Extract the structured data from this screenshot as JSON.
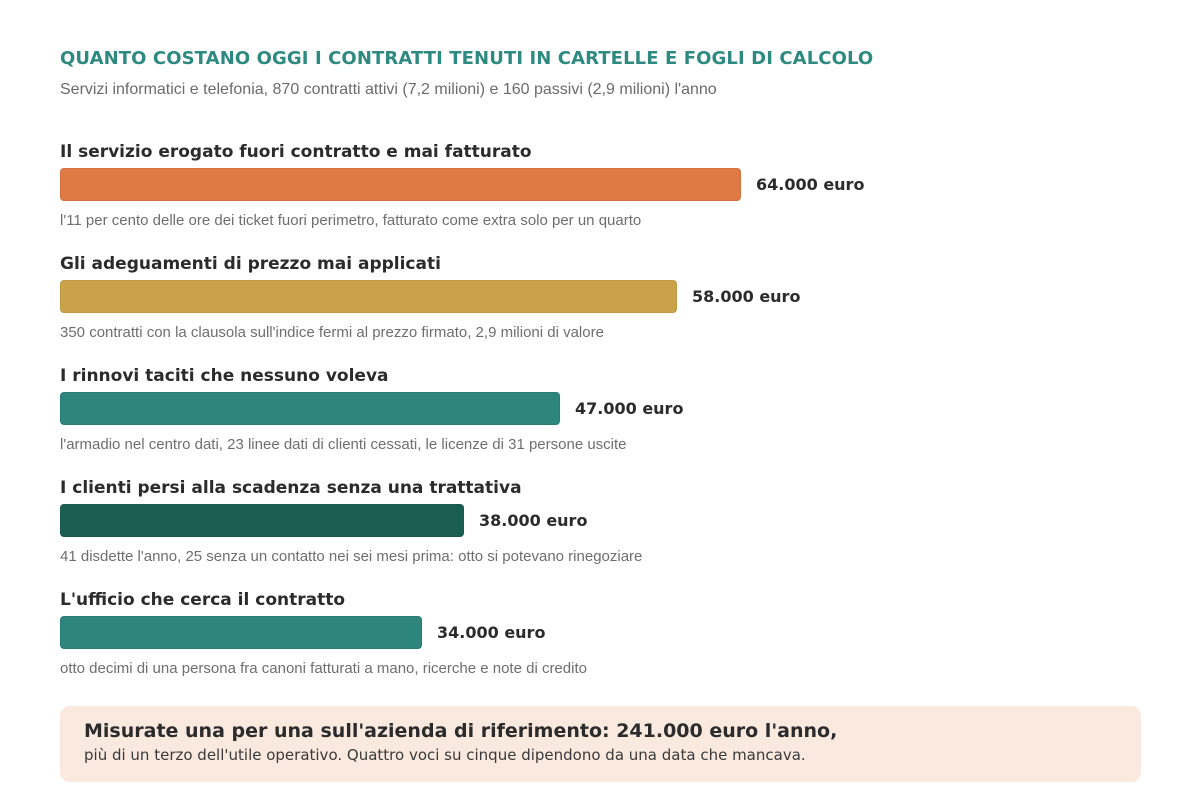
{
  "title": "QUANTO COSTANO OGGI I CONTRATTI TENUTI IN CARTELLE E FOGLI DI CALCOLO",
  "subtitle": "Servizi informatici e telefonia, 870 contratti attivi (7,2 milioni) e 160 passivi (2,9 milioni) l'anno",
  "chart_data": {
    "type": "bar",
    "orientation": "horizontal",
    "unit": "euro",
    "categories": [
      "Il servizio erogato fuori contratto e mai fatturato",
      "Gli adeguamenti di prezzo mai applicati",
      "I rinnovi taciti che nessuno voleva",
      "I clienti persi alla scadenza senza una trattativa",
      "L'ufficio che cerca il contratto"
    ],
    "values": [
      64000,
      58000,
      47000,
      38000,
      34000
    ],
    "value_labels": [
      "64.000 euro",
      "58.000 euro",
      "47.000 euro",
      "38.000 euro",
      "34.000 euro"
    ],
    "notes": [
      "l'11 per cento delle ore dei ticket fuori perimetro, fatturato come extra solo per un quarto",
      "350 contratti con la clausola sull'indice fermi al prezzo firmato, 2,9 milioni di valore",
      "l'armadio nel centro dati, 23 linee dati di clienti cessati, le licenze di 31 persone uscite",
      "41 disdette l'anno, 25 senza un contatto nei sei mesi prima: otto si potevano rinegoziare",
      "otto decimi di una persona fra canoni fatturati a mano, ricerche e note di credito"
    ],
    "colors": [
      "#df7a44",
      "#c9a24a",
      "#2e857c",
      "#1a5e52",
      "#2e857c"
    ],
    "xlim": [
      0,
      64000
    ],
    "grid": false,
    "legend": "none"
  },
  "callout": {
    "headline": "Misurate una per una sull'azienda di riferimento: 241.000 euro l'anno,",
    "body": "più di un terzo dell'utile operativo. Quattro voci su cinque dipendono da una data che mancava."
  }
}
